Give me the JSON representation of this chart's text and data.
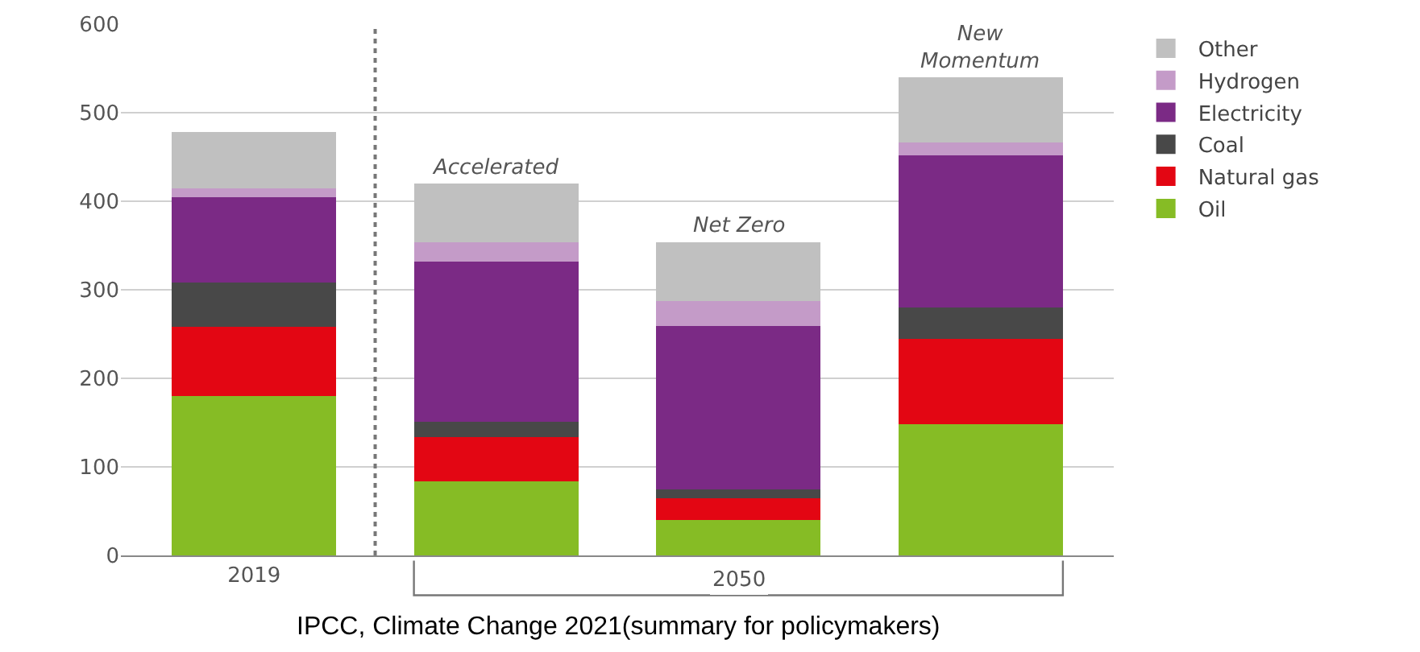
{
  "chart_data": {
    "type": "bar",
    "stacked": true,
    "categories": [
      "2019",
      null,
      null,
      null
    ],
    "series": [
      {
        "name": "Oil",
        "color": "#86bc25",
        "values": [
          180,
          84,
          40,
          148
        ]
      },
      {
        "name": "Natural gas",
        "color": "#e30613",
        "values": [
          78,
          50,
          25,
          97
        ]
      },
      {
        "name": "Coal",
        "color": "#484848",
        "values": [
          50,
          17,
          10,
          35
        ]
      },
      {
        "name": "Electricity",
        "color": "#7b2a85",
        "values": [
          97,
          181,
          184,
          172
        ]
      },
      {
        "name": "Hydrogen",
        "color": "#c49bc8",
        "values": [
          10,
          22,
          28,
          14
        ]
      },
      {
        "name": "Other",
        "color": "#c0c0c0",
        "values": [
          63,
          66,
          67,
          74
        ]
      }
    ],
    "ylim": [
      0,
      600
    ],
    "yticks": [
      0,
      100,
      200,
      300,
      400,
      500,
      600
    ],
    "grid": "y",
    "legend": "right",
    "annotations": [
      {
        "text": "Accelerated",
        "y": 420
      },
      {
        "text": "Net Zero",
        "y": 354
      },
      {
        "text": "New\nMomentum",
        "y": 540
      },
      "2050",
      "IPCC, Climate Change 2021(summary for policymakers)"
    ]
  }
}
